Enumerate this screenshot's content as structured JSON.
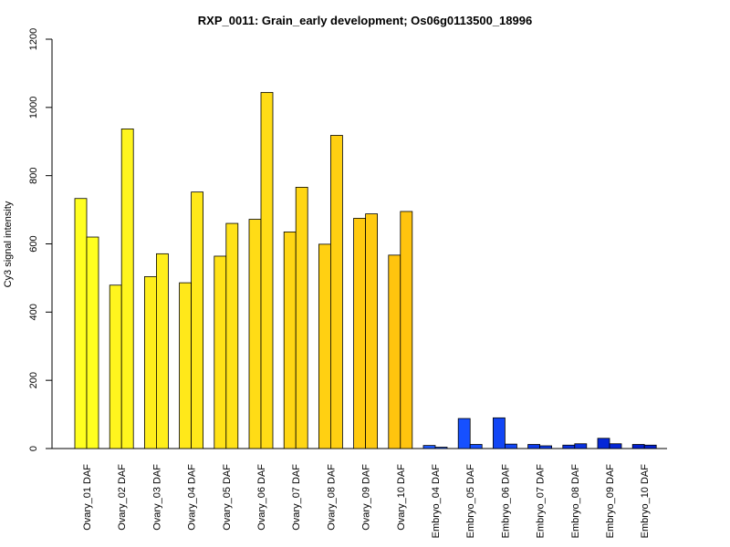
{
  "chart_data": {
    "type": "bar",
    "title": "RXP_0011: Grain_early development; Os06g0113500_18996",
    "xlabel": "",
    "ylabel": "Cy3 signal intensity",
    "ylim": [
      0,
      1200
    ],
    "yticks": [
      0,
      200,
      400,
      600,
      800,
      1000,
      1200
    ],
    "grid": false,
    "legend": "none",
    "categories": [
      "Ovary_01 DAF",
      "Ovary_02 DAF",
      "Ovary_03 DAF",
      "Ovary_04 DAF",
      "Ovary_05 DAF",
      "Ovary_06 DAF",
      "Ovary_07 DAF",
      "Ovary_08 DAF",
      "Ovary_09 DAF",
      "Ovary_10 DAF",
      "Embryo_04 DAF",
      "Embryo_05 DAF",
      "Embryo_06 DAF",
      "Embryo_07 DAF",
      "Embryo_08 DAF",
      "Embryo_09 DAF",
      "Embryo_10 DAF"
    ],
    "series": [
      {
        "values": [
          733,
          479,
          504,
          486,
          564,
          672,
          635,
          599,
          675,
          567,
          9,
          88,
          90,
          12,
          10,
          30,
          12
        ]
      },
      {
        "values": [
          620,
          937,
          571,
          752,
          660,
          1044,
          766,
          918,
          688,
          695,
          4,
          12,
          13,
          8,
          14,
          14,
          10
        ]
      }
    ],
    "colors": [
      "#FFFF20",
      "#FFF51E",
      "#FFEE1C",
      "#FFE81A",
      "#FFE218",
      "#FFDC16",
      "#FFD614",
      "#FFD012",
      "#FFCA10",
      "#FFC40E",
      "#1E5AFF",
      "#1650FF",
      "#1246F5",
      "#0E3CEB",
      "#0A32E1",
      "#0628D7",
      "#0220CD"
    ]
  }
}
